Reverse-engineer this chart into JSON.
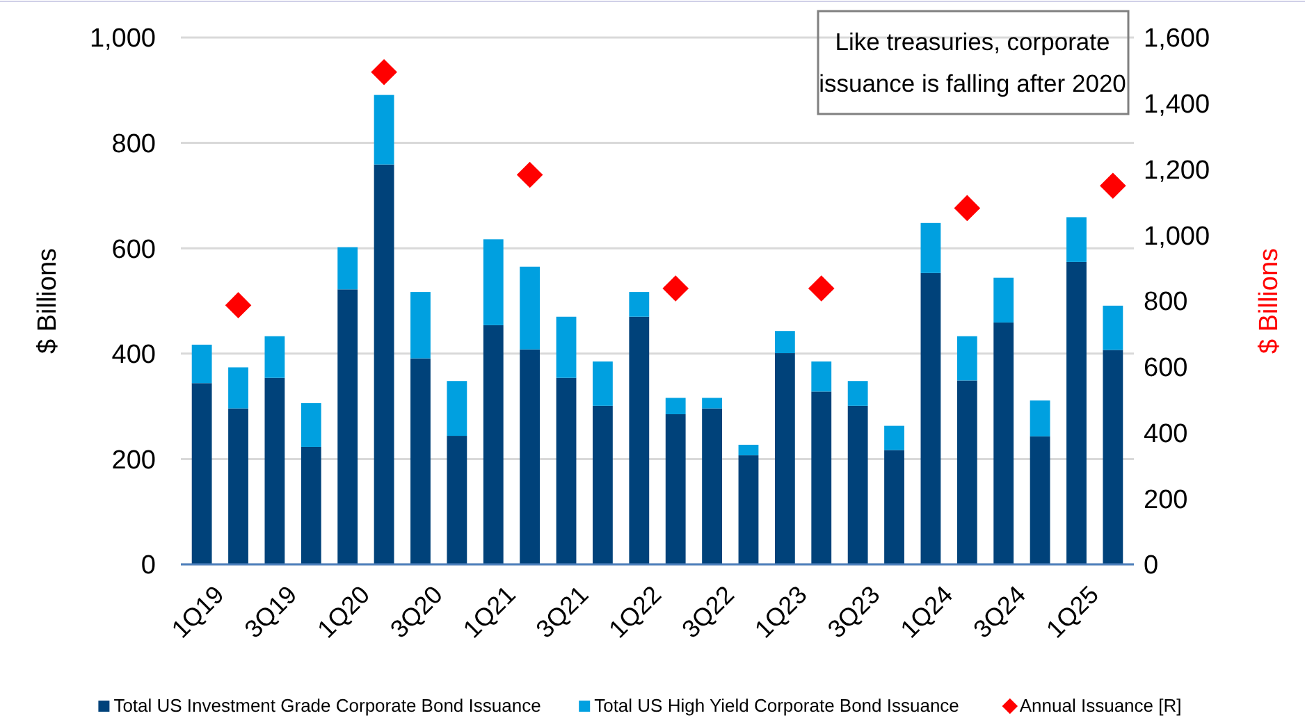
{
  "chart_data": {
    "type": "bar",
    "title": "Like treasuries, corporate issuance is falling after 2020",
    "ylabel": "$ Billions",
    "y2label": "$ Billions",
    "stacked": true,
    "categories": [
      "1Q19",
      null,
      "3Q19",
      null,
      "1Q20",
      null,
      "3Q20",
      null,
      "1Q21",
      null,
      "3Q21",
      null,
      "1Q22",
      null,
      "3Q22",
      null,
      "1Q23",
      null,
      "3Q23",
      null,
      "1Q24",
      null,
      "3Q24",
      null,
      "1Q25",
      null
    ],
    "series": [
      {
        "name": "Total US Investment Grade Corporate Bond Issuance",
        "color": "#00427a",
        "values": [
          344,
          296,
          354,
          223,
          522,
          759,
          391,
          244,
          454,
          408,
          354,
          301,
          470,
          285,
          296,
          207,
          401,
          328,
          301,
          217,
          553,
          349,
          459,
          243,
          574,
          407
        ]
      },
      {
        "name": "Total US High Yield Corporate Bond Issuance",
        "color": "#00a0e0",
        "values": [
          73,
          78,
          79,
          83,
          80,
          132,
          126,
          104,
          163,
          157,
          116,
          84,
          47,
          31,
          20,
          20,
          42,
          57,
          47,
          46,
          95,
          84,
          85,
          68,
          85,
          84
        ]
      },
      {
        "name": "Annual Issuance [R]",
        "type": "scatter",
        "axis": "y2",
        "marker": "diamond",
        "color": "#ff0000",
        "values": [
          null,
          787,
          null,
          null,
          null,
          1495,
          null,
          null,
          null,
          1183,
          null,
          null,
          null,
          838,
          null,
          null,
          null,
          838,
          null,
          null,
          null,
          1082,
          null,
          null,
          null,
          1150
        ]
      }
    ],
    "ylim": [
      0,
      1000
    ],
    "yticks": [
      0,
      {
        "value": 200,
        "label": "200"
      },
      {
        "value": 400,
        "label": "400"
      },
      {
        "value": 600,
        "label": "600"
      },
      {
        "value": 800,
        "label": "800"
      },
      {
        "value": 1000,
        "label": "1,000"
      }
    ],
    "y2lim": [
      0,
      1600
    ],
    "y2ticks": [
      0,
      200,
      400,
      600,
      800,
      {
        "value": 1000,
        "label": "1,000"
      },
      {
        "value": 1200,
        "label": "1,200"
      },
      {
        "value": 1400,
        "label": "1,400"
      },
      {
        "value": 1600,
        "label": "1,600"
      }
    ],
    "grid": "y",
    "legend": "bottom"
  }
}
